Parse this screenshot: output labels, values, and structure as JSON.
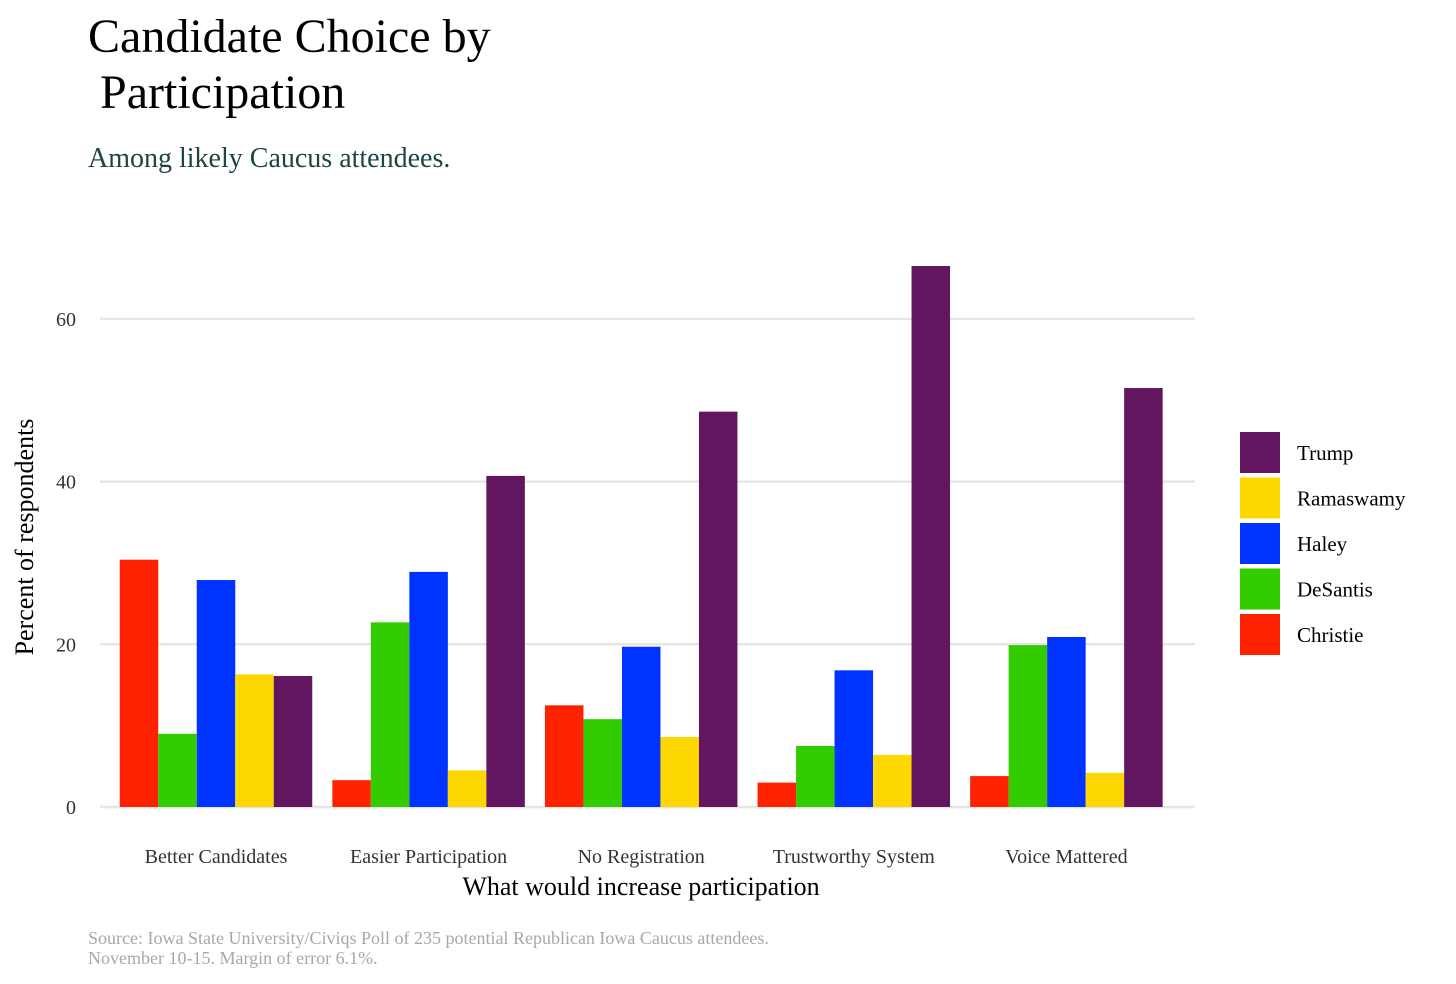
{
  "chart_data": {
    "type": "bar",
    "title_lines": [
      "Candidate Choice by",
      " Participation"
    ],
    "subtitle": "Among likely Caucus attendees.",
    "xlabel": "What would increase participation",
    "ylabel": "Percent of respondents",
    "caption_lines": [
      "Source: Iowa State University/Civiqs Poll of 235 potential Republican Iowa Caucus attendees.",
      "November 10-15.  Margin of error 6.1%."
    ],
    "categories": [
      "Better Candidates",
      "Easier Participation",
      "No Registration",
      "Trustworthy System",
      "Voice Mattered"
    ],
    "yticks": [
      0,
      20,
      40,
      60
    ],
    "ylim": [
      0,
      67
    ],
    "grid": true,
    "legend_position": "right",
    "legend_order": [
      "Trump",
      "Ramaswamy",
      "Haley",
      "DeSantis",
      "Christie"
    ],
    "series": [
      {
        "name": "Christie",
        "color": "#ff2200",
        "values": [
          30.4,
          3.3,
          12.5,
          3.0,
          3.8
        ]
      },
      {
        "name": "DeSantis",
        "color": "#33cc00",
        "values": [
          9.0,
          22.7,
          10.8,
          7.5,
          19.9
        ]
      },
      {
        "name": "Haley",
        "color": "#0033ff",
        "values": [
          27.9,
          28.9,
          19.7,
          16.8,
          20.9
        ]
      },
      {
        "name": "Ramaswamy",
        "color": "#ffd700",
        "values": [
          16.3,
          4.5,
          8.6,
          6.4,
          4.2
        ]
      },
      {
        "name": "Trump",
        "color": "#631660",
        "values": [
          16.1,
          40.7,
          48.6,
          66.5,
          51.5
        ]
      }
    ]
  }
}
